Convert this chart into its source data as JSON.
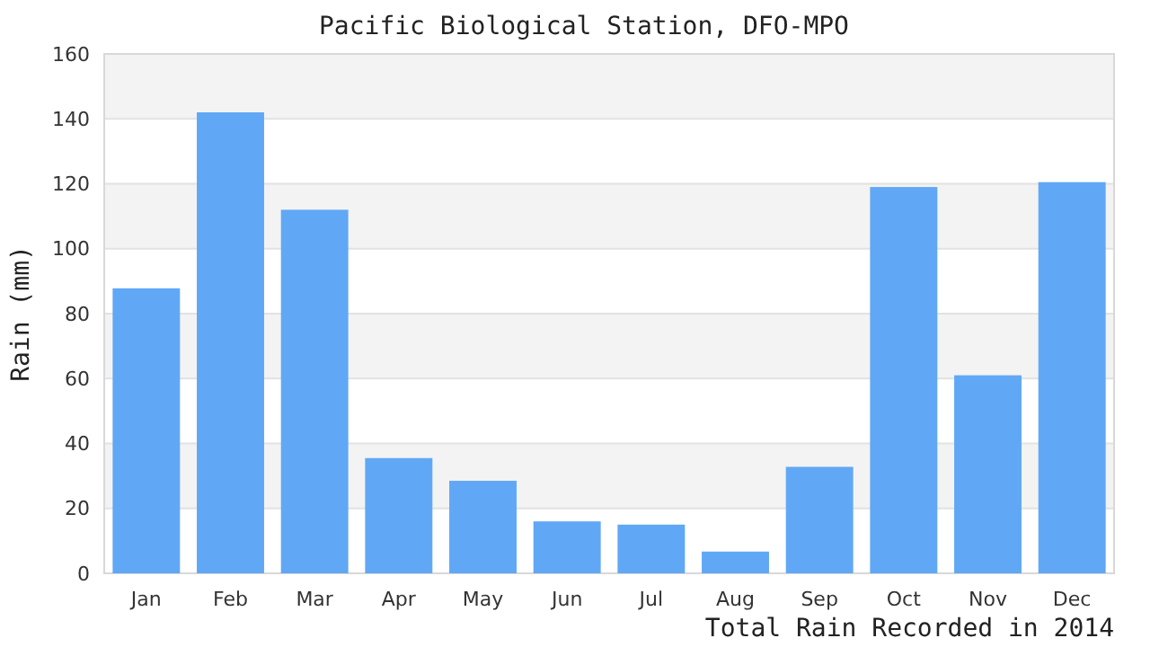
{
  "chart_data": {
    "type": "bar",
    "title": "Pacific Biological Station, DFO-MPO",
    "ylabel": "Rain (mm)",
    "categories": [
      "Jan",
      "Feb",
      "Mar",
      "Apr",
      "May",
      "Jun",
      "Jul",
      "Aug",
      "Sep",
      "Oct",
      "Nov",
      "Dec"
    ],
    "values": [
      87.8,
      142,
      112,
      35.5,
      28.5,
      16,
      15,
      6.7,
      32.8,
      119,
      61,
      120.5
    ],
    "color": "#60a8f5",
    "ylim": [
      0,
      160
    ],
    "yticks": [
      0,
      20,
      40,
      60,
      80,
      100,
      120,
      140,
      160
    ],
    "grid": true,
    "annotations": [
      "Total Rain Recorded in 2014"
    ]
  }
}
